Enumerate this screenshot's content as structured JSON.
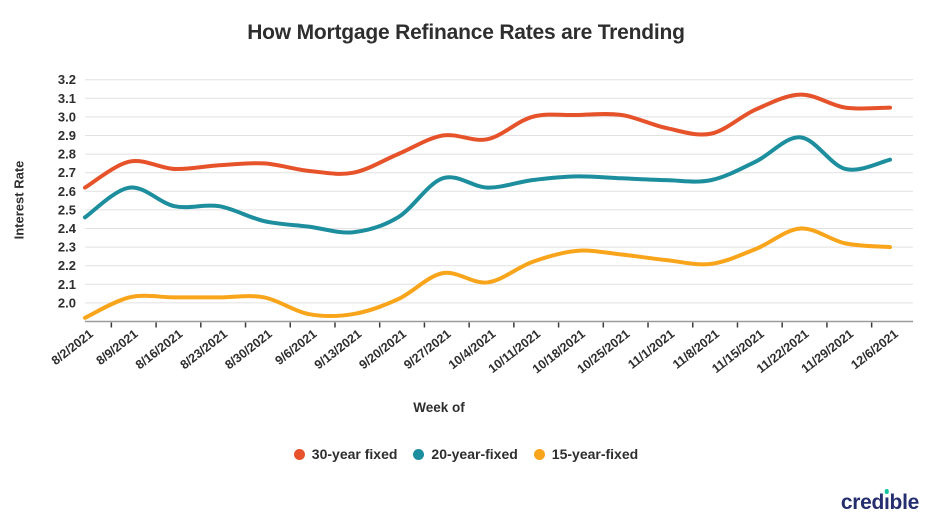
{
  "chart_data": {
    "type": "line",
    "title": "How Mortgage Refinance Rates are Trending",
    "xlabel": "Week of",
    "ylabel": "Interest Rate",
    "categories": [
      "8/2/2021",
      "8/9/2021",
      "8/16/2021",
      "8/23/2021",
      "8/30/2021",
      "9/6/2021",
      "9/13/2021",
      "9/20/2021",
      "9/27/2021",
      "10/4/2021",
      "10/11/2021",
      "10/18/2021",
      "10/25/2021",
      "11/1/2021",
      "11/8/2021",
      "11/15/2021",
      "11/22/2021",
      "11/29/2021",
      "12/6/2021"
    ],
    "series": [
      {
        "name": "30-year fixed",
        "color": "#E6532B",
        "values": [
          2.62,
          2.76,
          2.72,
          2.74,
          2.75,
          2.71,
          2.7,
          2.8,
          2.9,
          2.88,
          3.0,
          3.01,
          3.01,
          2.94,
          2.91,
          3.04,
          3.12,
          3.05,
          3.05
        ]
      },
      {
        "name": "20-year-fixed",
        "color": "#1D8E9E",
        "values": [
          2.46,
          2.62,
          2.52,
          2.52,
          2.44,
          2.41,
          2.38,
          2.46,
          2.67,
          2.62,
          2.66,
          2.68,
          2.67,
          2.66,
          2.66,
          2.76,
          2.89,
          2.72,
          2.77
        ]
      },
      {
        "name": "15-year-fixed",
        "color": "#F9A51B",
        "values": [
          1.92,
          2.03,
          2.03,
          2.03,
          2.03,
          1.94,
          1.94,
          2.02,
          2.16,
          2.11,
          2.22,
          2.28,
          2.26,
          2.23,
          2.21,
          2.29,
          2.4,
          2.32,
          2.3
        ]
      }
    ],
    "ylim": [
      1.9,
      3.25
    ],
    "ytick_min": 2.0,
    "ytick_max": 3.2,
    "ytick_step": 0.1,
    "grid": true,
    "legend_position": "bottom"
  },
  "logo": {
    "left": "cred",
    "i": "ı",
    "right": "ble"
  },
  "colors": {
    "gridline": "#e1e1e1",
    "axis_line": "#9b9b9b",
    "tick": "#3a3a3a",
    "label_text": "#2e2e2e"
  }
}
